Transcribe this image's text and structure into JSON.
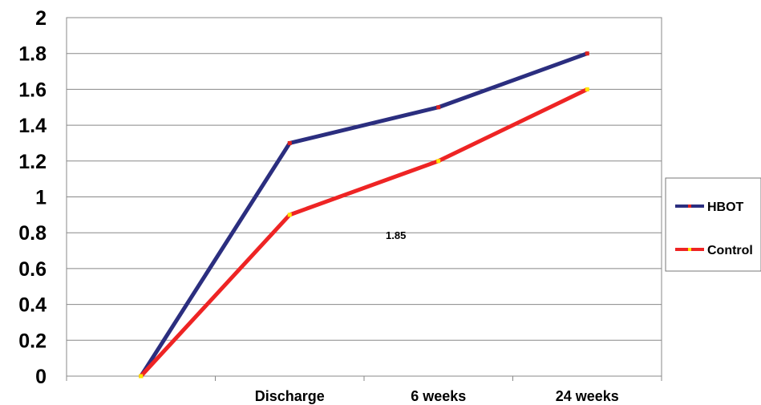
{
  "chart_data": {
    "type": "line",
    "categories": [
      "",
      "Discharge",
      "6 weeks",
      "24 weeks"
    ],
    "series": [
      {
        "name": "HBOT",
        "values": [
          0,
          1.3,
          1.5,
          1.8
        ],
        "color": "#2b2e7f",
        "marker_color": "#e0221f"
      },
      {
        "name": "Control",
        "values": [
          0,
          0.9,
          1.2,
          1.6
        ],
        "color": "#ee2424",
        "marker_color": "#ffe600"
      }
    ],
    "ylim": [
      0,
      2
    ],
    "yticks": [
      "0",
      "0.2",
      "0.4",
      "0.6",
      "0.8",
      "1",
      "1.2",
      "1.4",
      "1.6",
      "1.8",
      "2"
    ],
    "annotation": "1.85",
    "grid": true,
    "legend_position": "right"
  }
}
